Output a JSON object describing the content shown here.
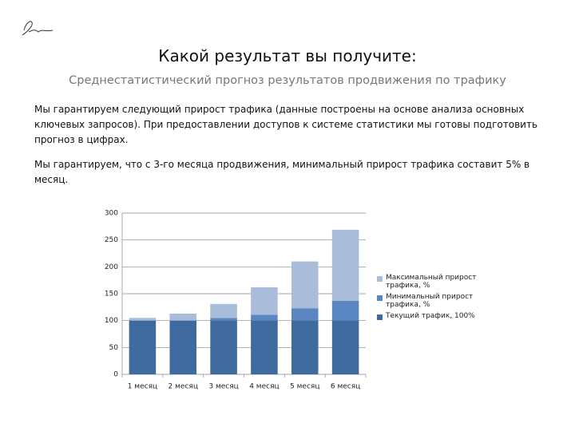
{
  "title": "Какой результат вы получите:",
  "subtitle": "Среднестатистический прогноз результатов продвижения по трафику",
  "paragraphs": [
    "Мы гарантируем следующий прирост трафика  (данные построены на основе анализа основных ключевых запросов). При предоставлении доступов к системе статистики мы готовы подготовить прогноз в цифрах.",
    "Мы гарантируем, что с 3-го месяца продвижения, минимальный прирост трафика составит 5% в месяц."
  ],
  "chart_data": {
    "type": "stacked-bar",
    "categories": [
      "1 месяц",
      "2 месяц",
      "3 месяц",
      "4 месяц",
      "5 месяц",
      "6 месяц"
    ],
    "series": [
      {
        "name": "Текущий трафик, 100%",
        "color": "#3f6aa0",
        "values": [
          100,
          100,
          100,
          100,
          100,
          100
        ]
      },
      {
        "name": "Минимальный прирост трафика, %",
        "color": "#5a86c2",
        "values": [
          0,
          0,
          5,
          11,
          23,
          37
        ]
      },
      {
        "name": "Максимальный прирост трафика, %",
        "color": "#a9bcda",
        "values": [
          5,
          13,
          26,
          51,
          87,
          132
        ]
      }
    ],
    "ylim": [
      0,
      300
    ],
    "yticks": [
      0,
      50,
      100,
      150,
      200,
      250,
      300
    ],
    "grid": true
  }
}
